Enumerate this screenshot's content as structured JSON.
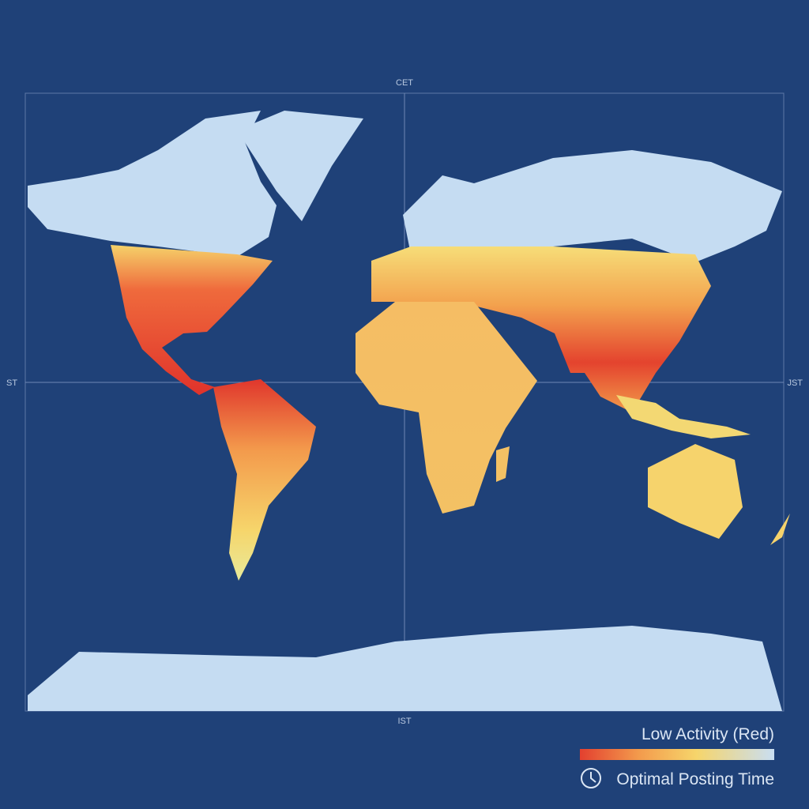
{
  "map": {
    "timezone_labels": {
      "top": "CET",
      "left": "ST",
      "right": "JST",
      "bottom": "IST"
    }
  },
  "legend": {
    "title": "Low Activity (Red)",
    "caption": "Optimal Posting Time"
  }
}
